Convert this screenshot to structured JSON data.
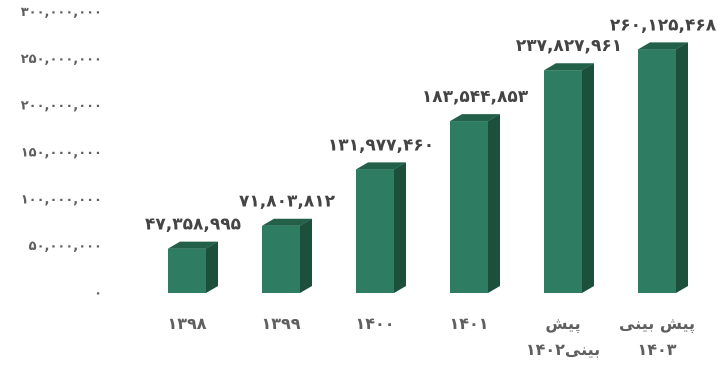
{
  "chart_data": {
    "type": "bar",
    "title": "",
    "xlabel": "",
    "ylabel": "",
    "ylim": [
      0,
      300000000
    ],
    "y_ticks": [
      "۰",
      "۵۰,۰۰۰,۰۰۰",
      "۱۰۰,۰۰۰,۰۰۰",
      "۱۵۰,۰۰۰,۰۰۰",
      "۲۰۰,۰۰۰,۰۰۰",
      "۲۵۰,۰۰۰,۰۰۰",
      "۳۰۰,۰۰۰,۰۰۰"
    ],
    "grid": false,
    "legend": "none",
    "three_d": true,
    "categories": [
      [
        "۱۳۹۸"
      ],
      [
        "۱۳۹۹"
      ],
      [
        "۱۴۰۰"
      ],
      [
        "۱۴۰۱"
      ],
      [
        "پیش",
        "بینی۱۴۰۲"
      ],
      [
        "پیش بینی",
        "۱۴۰۳"
      ]
    ],
    "values": [
      47358995,
      71803812,
      131977460,
      183544853,
      237827961,
      260125468
    ],
    "value_labels": [
      "۴۷,۳۵۸,۹۹۵",
      "۷۱,۸۰۳,۸۱۲",
      "۱۳۱,۹۷۷,۴۶۰",
      "۱۸۳,۵۴۴,۸۵۳",
      "۲۳۷,۸۲۷,۹۶۱",
      "۲۶۰,۱۲۵,۴۶۸"
    ],
    "colors": {
      "front": "#2e7d62",
      "side": "#1d4f3d",
      "top": "#236049"
    }
  }
}
